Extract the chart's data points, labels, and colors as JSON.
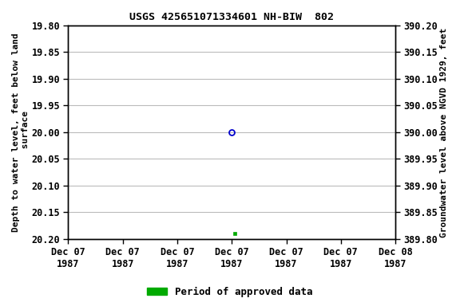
{
  "title": "USGS 425651071334601 NH-BIW  802",
  "left_ylabel_lines": [
    "Depth to water level, feet below land",
    "surface"
  ],
  "right_ylabel": "Groundwater level above NGVD 1929, feet",
  "ylim_left_top": 19.8,
  "ylim_left_bottom": 20.2,
  "ylim_right_top": 390.2,
  "ylim_right_bottom": 389.8,
  "yticks_left": [
    19.8,
    19.85,
    19.9,
    19.95,
    20.0,
    20.05,
    20.1,
    20.15,
    20.2
  ],
  "yticks_right": [
    390.2,
    390.15,
    390.1,
    390.05,
    390.0,
    389.95,
    389.9,
    389.85,
    389.8
  ],
  "xlim": [
    0,
    6
  ],
  "xtick_positions": [
    0,
    1,
    2,
    3,
    4,
    5,
    6
  ],
  "xtick_labels": [
    "Dec 07\n1987",
    "Dec 07\n1987",
    "Dec 07\n1987",
    "Dec 07\n1987",
    "Dec 07\n1987",
    "Dec 07\n1987",
    "Dec 08\n1987"
  ],
  "data_x": [
    3
  ],
  "data_y_depth": [
    20.0
  ],
  "data_x2": [
    3.05
  ],
  "data_y_depth2": [
    20.19
  ],
  "open_circle_color": "#0000cc",
  "filled_square_color": "#00aa00",
  "grid_color": "#bbbbbb",
  "background_color": "white",
  "legend_label": "Period of approved data",
  "legend_color": "#00aa00",
  "font_size_title": 9.5,
  "font_size_tick": 8.5,
  "font_size_ylabel": 8,
  "font_size_legend": 9
}
